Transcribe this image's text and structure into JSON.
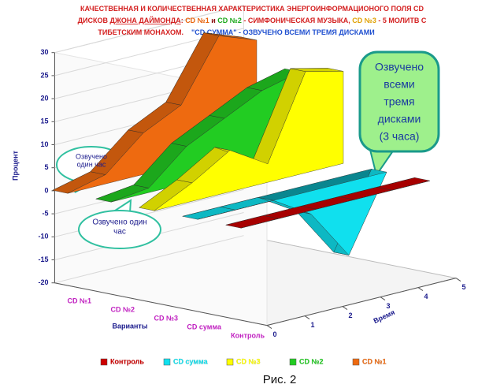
{
  "chart_data": {
    "type": "ribbon3d",
    "title": [
      [
        {
          "text": "КАЧЕСТВЕННАЯ И КОЛИЧЕСТВЕННАЯ ХАРАКТЕРИСТИКА ЭНЕРГОИНФОРМАЦИОНОГО ПОЛЯ CD",
          "color": "#d42020"
        }
      ],
      [
        {
          "text": "ДИСКОВ ",
          "color": "#d42020"
        },
        {
          "text": "ДЖОНА ДАЙМОНДА",
          "color": "#d42020",
          "underline": true
        },
        {
          "text": ": ",
          "color": "#d42020"
        },
        {
          "text": "CD №1",
          "color": "#e8620a"
        },
        {
          "text": " и ",
          "color": "#8b1010"
        },
        {
          "text": "CD №2",
          "color": "#1aa81a"
        },
        {
          "text": " - СИМФОНИЧЕСКАЯ МУЗЫКА, ",
          "color": "#d42020"
        },
        {
          "text": "CD №3",
          "color": "#e0a000"
        },
        {
          "text": " - 5 МОЛИТВ С",
          "color": "#d42020"
        }
      ],
      [
        {
          "text": "ТИБЕТСКИМ МОНАХОМ.",
          "color": "#d42020"
        },
        {
          "text": "    \"CD СУММА\"",
          "color": "#2050d0"
        },
        {
          "text": " - ОЗВУЧЕНО ВСЕМИ ТРЕМЯ ДИСКАМИ",
          "color": "#2050d0"
        }
      ]
    ],
    "y_label": "Процент",
    "x_label": "Время",
    "z_label": "Варианты",
    "x": [
      0,
      1,
      2,
      3,
      4,
      5
    ],
    "xlim": [
      0,
      5
    ],
    "xticks": [
      0,
      1,
      2,
      3,
      4,
      5
    ],
    "ylim": [
      -20,
      30
    ],
    "yticks": [
      -20,
      -15,
      -10,
      -5,
      0,
      5,
      10,
      15,
      20,
      25,
      30
    ],
    "grid": true,
    "series": [
      {
        "name": "CD №1",
        "color": "#ee6a10",
        "values": [
          0,
          2,
          9,
          13,
          26,
          23
        ]
      },
      {
        "name": "CD №2",
        "color": "#22cc22",
        "values": [
          0,
          1,
          8,
          12,
          16,
          18
        ]
      },
      {
        "name": "CD №3",
        "color": "#ffff00",
        "values": [
          0,
          4,
          9,
          4,
          22,
          20
        ]
      },
      {
        "name": "CD сумма",
        "color": "#10e0ee",
        "values": [
          0,
          0,
          0,
          -5,
          -16,
          0
        ]
      },
      {
        "name": "Контроль",
        "color": "#cc0000",
        "values": [
          0,
          0,
          0,
          0,
          0,
          0
        ]
      }
    ],
    "annotations": [
      [
        "Озвучено",
        "один час"
      ],
      [
        "Озвучено один",
        "час"
      ],
      [
        "Озвучено",
        "всеми",
        "тремя",
        "дисками",
        "(3 часа)"
      ]
    ],
    "caption": "Рис. 2"
  }
}
